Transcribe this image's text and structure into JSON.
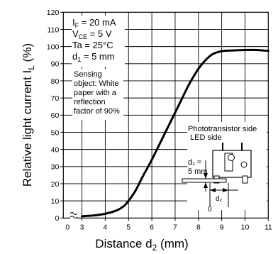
{
  "chart_data": {
    "type": "line",
    "xlabel_main": "Distance d",
    "xlabel_sub": "2",
    "xlabel_unit": " (mm)",
    "ylabel_main": "Relative light current  I",
    "ylabel_sub": "L",
    "ylabel_unit": " (%)",
    "x_ticks": [
      "0",
      "3",
      "4",
      "5",
      "6",
      "7",
      "8",
      "9",
      "10",
      "11"
    ],
    "y_ticks": [
      "0",
      "10",
      "20",
      "30",
      "40",
      "50",
      "60",
      "70",
      "80",
      "90",
      "100",
      "110",
      "120"
    ],
    "xlim": [
      2.2,
      11
    ],
    "ylim": [
      0,
      120
    ],
    "axis_break_mark": "≈",
    "grid": true,
    "series": [
      {
        "x": [
          3.0,
          3.5,
          4.0,
          4.5,
          4.8,
          5.0,
          5.3,
          5.6,
          6.0,
          6.4,
          6.8,
          7.2,
          7.6,
          8.0,
          8.3,
          8.6,
          8.9,
          9.2,
          9.6,
          10.0,
          10.5,
          11.0
        ],
        "y": [
          1,
          1.5,
          2.5,
          4.5,
          7,
          10,
          16,
          24,
          34,
          45,
          56,
          67,
          78,
          87,
          92,
          95.5,
          97,
          97.6,
          97.8,
          98,
          98,
          97.5
        ]
      }
    ],
    "conditions": [
      {
        "main": "I",
        "sub": "F",
        "rest": " = 20 mA"
      },
      {
        "main": "V",
        "sub": "CE",
        "rest": " = 5 V"
      },
      {
        "main": "Ta = 25°C",
        "sub": "",
        "rest": ""
      },
      {
        "main": "d",
        "sub": "1",
        "rest": " = 5 mm"
      }
    ],
    "note_lines": [
      "Sensing",
      "object: White",
      "paper with a",
      "reflection",
      "factor of 90%"
    ],
    "diagram": {
      "phototransistor_label": "Phototransistor side",
      "led_label": "LED side",
      "d1_label_line1": "d₁ =",
      "d1_label_line2": "5 mm",
      "d2_label": "d₂",
      "zero_label": "0"
    }
  }
}
